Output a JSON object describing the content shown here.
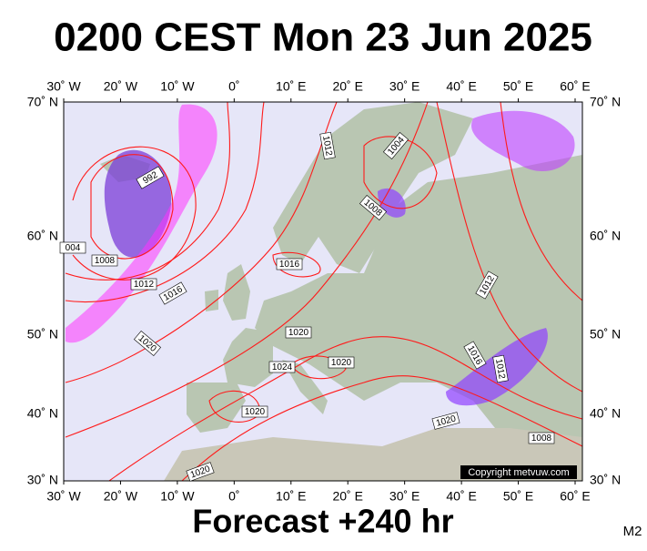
{
  "title": "0200 CEST Mon 23 Jun 2025",
  "footer": "Forecast +240 hr",
  "model": "M2",
  "copyright": "Copyright metvuw.com",
  "longitude_labels": [
    "30˚ W",
    "20˚ W",
    "10˚ W",
    "0˚",
    "10˚ E",
    "20˚ E",
    "30˚ E",
    "40˚ E",
    "50˚ E",
    "60˚ E"
  ],
  "latitude_labels": [
    "70˚ N",
    "60˚ N",
    "50˚ N",
    "40˚ N",
    "30˚ N"
  ],
  "isobar_labels": [
    "992",
    "1008",
    "004",
    "1012",
    "1016",
    "1020",
    "1012",
    "1004",
    "1008",
    "1016",
    "1020",
    "1024",
    "1020",
    "1020",
    "1020",
    "1012",
    "1016",
    "1012",
    "1020",
    "1008"
  ]
}
